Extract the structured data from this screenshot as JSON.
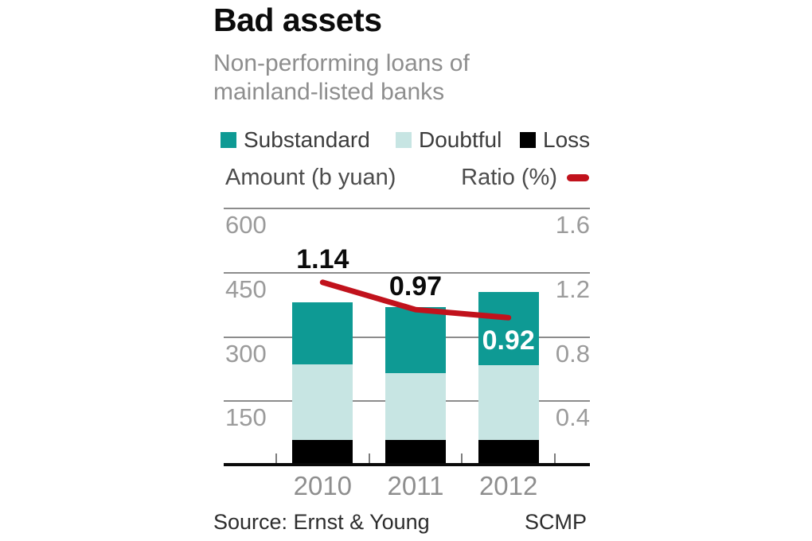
{
  "header": {
    "title": "Bad assets",
    "subtitle": "Non-performing loans of\nmainland-listed banks"
  },
  "legend": {
    "items": [
      {
        "label": "Substandard",
        "color": "#0e9a94"
      },
      {
        "label": "Doubtful",
        "color": "#c7e5e3"
      },
      {
        "label": "Loss",
        "color": "#000000"
      }
    ]
  },
  "chart_data": {
    "type": "stacked-bar+line",
    "title": "Bad assets",
    "subtitle": "Non-performing loans of mainland-listed banks",
    "categories": [
      "2010",
      "2011",
      "2012"
    ],
    "bar_unit": "b yuan",
    "series": [
      {
        "name": "Substandard",
        "color": "#0e9a94",
        "values": [
          145,
          154,
          171
        ]
      },
      {
        "name": "Doubtful",
        "color": "#c7e5e3",
        "values": [
          175,
          157,
          174
        ]
      },
      {
        "name": "Loss",
        "color": "#000000",
        "values": [
          60,
          59,
          60
        ]
      }
    ],
    "stack_order_bottom_up": [
      "Loss",
      "Doubtful",
      "Substandard"
    ],
    "bar_totals": [
      380,
      370,
      405
    ],
    "line": {
      "name": "Ratio (%)",
      "color": "#c1121c",
      "values": [
        1.14,
        0.97,
        0.92
      ],
      "labels": [
        "1.14",
        "0.97",
        "0.92"
      ],
      "label_placements": [
        "above",
        "above",
        "below"
      ],
      "label_colors": [
        "#0b0b0b",
        "#0b0b0b",
        "#ffffff"
      ]
    },
    "left_axis": {
      "label": "Amount (b yuan)",
      "ticks": [
        600,
        450,
        300,
        150
      ],
      "range": [
        0,
        600
      ],
      "grid": true
    },
    "right_axis": {
      "label": "Ratio (%)",
      "ticks": [
        1.6,
        1.2,
        0.8,
        0.4
      ],
      "range": [
        0,
        1.6
      ]
    },
    "legend_position": "top",
    "grid_color": "#8c8c8c"
  },
  "footer": {
    "source": "Source: Ernst & Young",
    "credit": "SCMP"
  }
}
